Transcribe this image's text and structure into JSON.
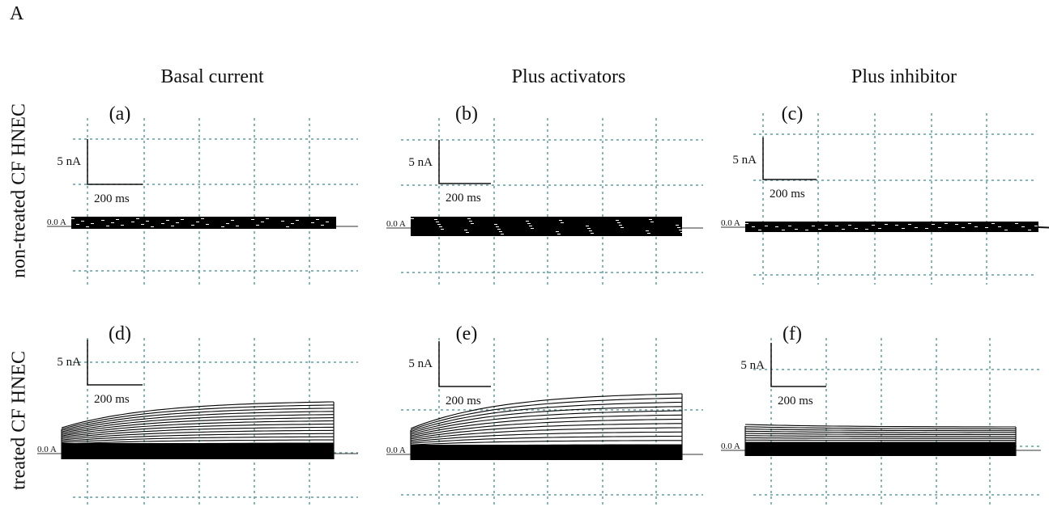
{
  "figure_letter": "A",
  "columns": [
    "Basal current",
    "Plus activators",
    "Plus inhibitor"
  ],
  "rows": [
    "non-treated CF HNEC",
    "treated CF HNEC"
  ],
  "panels": [
    {
      "label": "(a)",
      "scale_current": "5 nA",
      "scale_time": "200 ms",
      "zero_label": "0.0 A"
    },
    {
      "label": "(b)",
      "scale_current": "5 nA",
      "scale_time": "200 ms",
      "zero_label": "0.0 A"
    },
    {
      "label": "(c)",
      "scale_current": "5 nA",
      "scale_time": "200 ms",
      "zero_label": "0.0 A"
    },
    {
      "label": "(d)",
      "scale_current": "5 nA",
      "scale_time": "200 ms",
      "zero_label": "0.0 A"
    },
    {
      "label": "(e)",
      "scale_current": "5 nA",
      "scale_time": "200 ms",
      "zero_label": "0.0 A"
    },
    {
      "label": "(f)",
      "scale_current": "5 nA",
      "scale_time": "200 ms",
      "zero_label": "0.0 A"
    }
  ],
  "colors": {
    "grid": "#5f9ea0",
    "trace": "#000000"
  }
}
